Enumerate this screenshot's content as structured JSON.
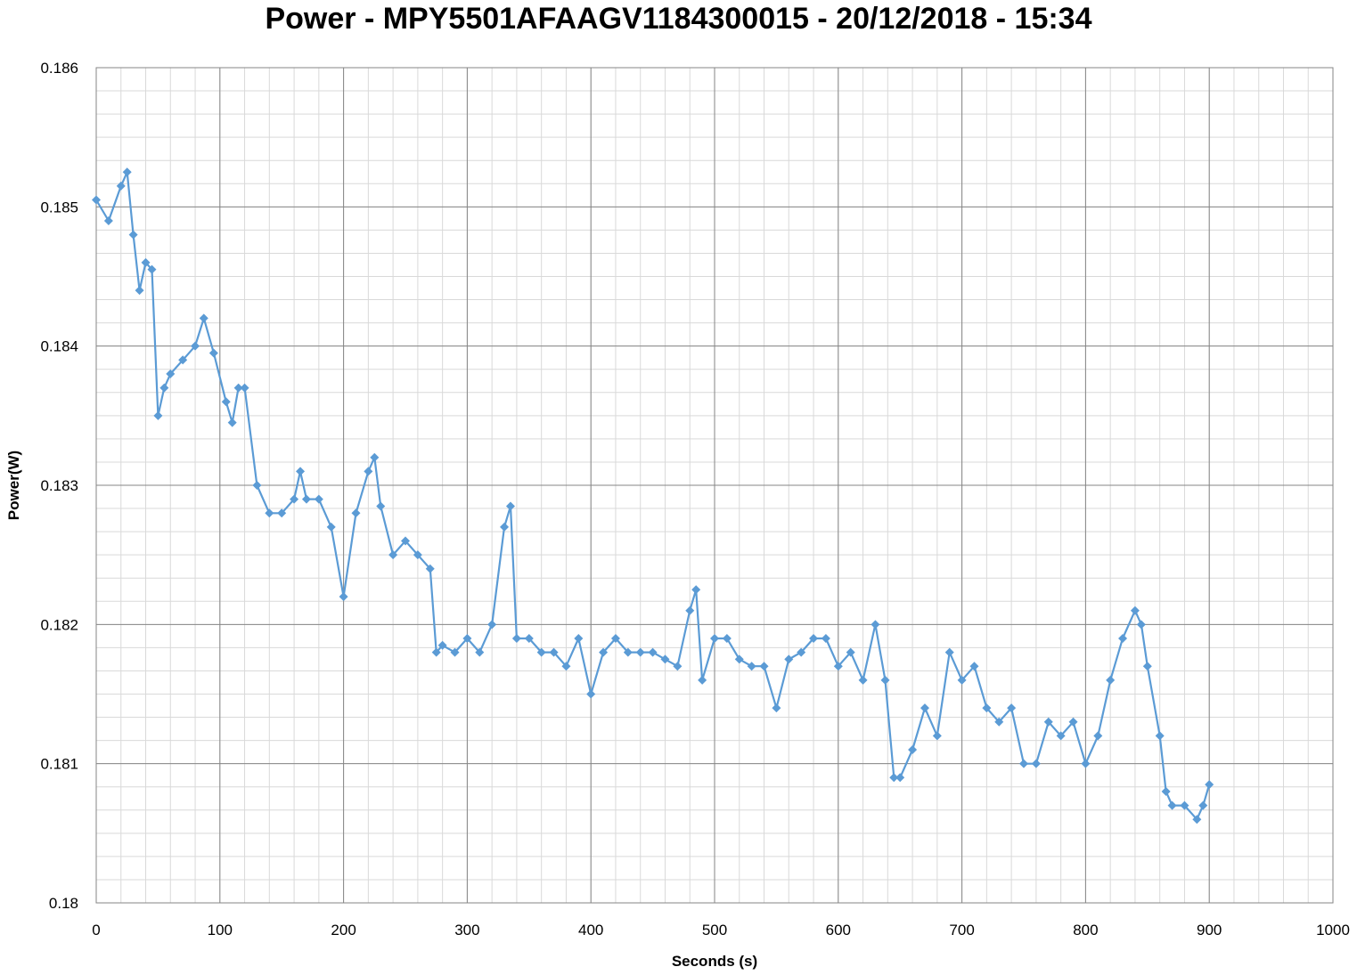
{
  "chart_data": {
    "type": "line",
    "title": "Power - MPY5501AFAAGV1184300015 - 20/12/2018 - 15:34",
    "xlabel": "Seconds (s)",
    "ylabel": "Power(W)",
    "xlim": [
      0,
      1000
    ],
    "ylim": [
      0.18,
      0.186
    ],
    "x_ticks": [
      0,
      100,
      200,
      300,
      400,
      500,
      600,
      700,
      800,
      900,
      1000
    ],
    "y_ticks": [
      0.18,
      0.181,
      0.182,
      0.183,
      0.184,
      0.185,
      0.186
    ],
    "x_tick_labels": [
      "0",
      "100",
      "200",
      "300",
      "400",
      "500",
      "600",
      "700",
      "800",
      "900",
      "1000"
    ],
    "y_tick_labels": [
      "0.18",
      "0.181",
      "0.182",
      "0.183",
      "0.184",
      "0.185",
      "0.186"
    ],
    "grid": "major and minor",
    "legend": "none",
    "marker": "diamond",
    "series_color": "#5B9BD5",
    "series": [
      {
        "x": [
          0,
          10,
          20,
          25,
          30,
          35,
          40,
          45,
          50,
          55,
          60,
          70,
          80,
          87,
          95,
          105,
          110,
          115,
          120,
          130,
          140,
          150,
          160,
          165,
          170,
          180,
          190,
          200,
          210,
          220,
          225,
          230,
          240,
          250,
          260,
          270,
          275,
          280,
          290,
          300,
          310,
          320,
          330,
          335,
          340,
          350,
          360,
          370,
          380,
          390,
          400,
          410,
          420,
          430,
          440,
          450,
          460,
          470,
          480,
          485,
          490,
          500,
          510,
          520,
          530,
          540,
          550,
          560,
          570,
          580,
          590,
          600,
          610,
          620,
          630,
          638,
          645,
          650,
          660,
          670,
          680,
          690,
          700,
          710,
          720,
          730,
          740,
          750,
          760,
          770,
          780,
          790,
          800,
          810,
          820,
          830,
          840,
          845,
          850,
          860,
          865,
          870,
          880,
          890,
          895,
          900
        ],
        "y": [
          0.18505,
          0.1849,
          0.18515,
          0.18525,
          0.1848,
          0.1844,
          0.1846,
          0.18455,
          0.1835,
          0.1837,
          0.1838,
          0.1839,
          0.184,
          0.1842,
          0.18395,
          0.1836,
          0.18345,
          0.1837,
          0.1837,
          0.183,
          0.1828,
          0.1828,
          0.1829,
          0.1831,
          0.1829,
          0.1829,
          0.1827,
          0.1822,
          0.1828,
          0.1831,
          0.1832,
          0.18285,
          0.1825,
          0.1826,
          0.1825,
          0.1824,
          0.1818,
          0.18185,
          0.1818,
          0.1819,
          0.1818,
          0.182,
          0.1827,
          0.18285,
          0.1819,
          0.1819,
          0.1818,
          0.1818,
          0.1817,
          0.1819,
          0.1815,
          0.1818,
          0.1819,
          0.1818,
          0.1818,
          0.1818,
          0.18175,
          0.1817,
          0.1821,
          0.18225,
          0.1816,
          0.1819,
          0.1819,
          0.18175,
          0.1817,
          0.1817,
          0.1814,
          0.18175,
          0.1818,
          0.1819,
          0.1819,
          0.1817,
          0.1818,
          0.1816,
          0.182,
          0.1816,
          0.1809,
          0.1809,
          0.1811,
          0.1814,
          0.1812,
          0.1818,
          0.1816,
          0.1817,
          0.1814,
          0.1813,
          0.1814,
          0.181,
          0.181,
          0.1813,
          0.1812,
          0.1813,
          0.181,
          0.1812,
          0.1816,
          0.1819,
          0.1821,
          0.182,
          0.1817,
          0.1812,
          0.1808,
          0.1807,
          0.1807,
          0.1806,
          0.1807,
          0.18085
        ]
      }
    ]
  }
}
